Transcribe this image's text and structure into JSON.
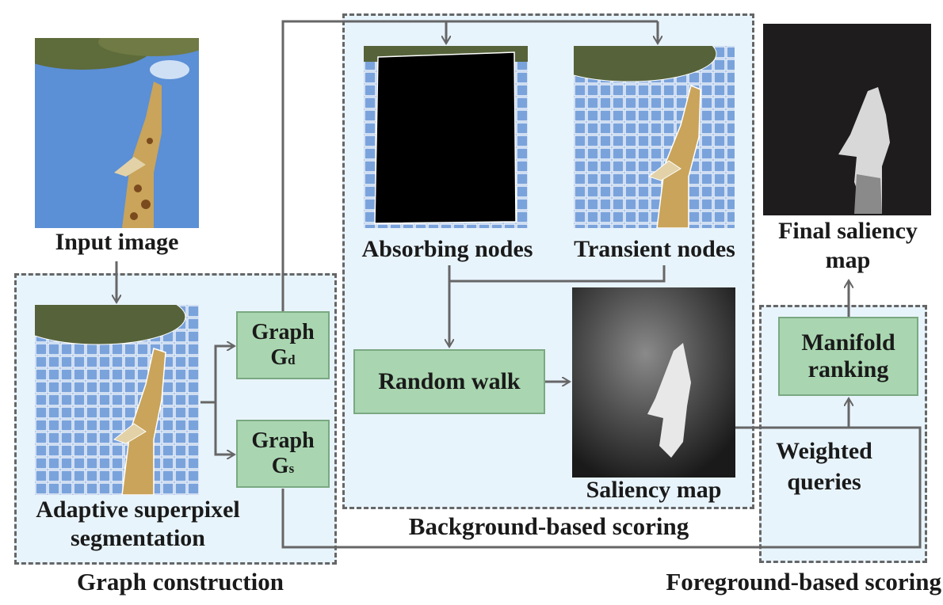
{
  "labels": {
    "input_image": "Input image",
    "adaptive_segmentation_line1": "Adaptive superpixel",
    "adaptive_segmentation_line2": "segmentation",
    "graph_construction": "Graph construction",
    "absorbing_nodes": "Absorbing nodes",
    "transient_nodes": "Transient nodes",
    "background_scoring": "Background-based scoring",
    "saliency_map": "Saliency map",
    "final_saliency_line1": "Final saliency",
    "final_saliency_line2": "map",
    "weighted_queries_line1": "Weighted",
    "weighted_queries_line2": "queries",
    "foreground_scoring": "Foreground-based scoring"
  },
  "boxes": {
    "graph_d_main": "Graph",
    "graph_d_letter": "G",
    "graph_d_sub": "d",
    "graph_s_main": "Graph",
    "graph_s_letter": "G",
    "graph_s_sub": "s",
    "random_walk": "Random walk",
    "manifold_line1": "Manifold",
    "manifold_line2": "ranking"
  },
  "colors": {
    "panel_bg": "#e8f4fc",
    "box_fill": "#a9d6b0",
    "arrow": "#666666",
    "sky": "#5b8fd6",
    "giraffe": "#c9a45a"
  }
}
